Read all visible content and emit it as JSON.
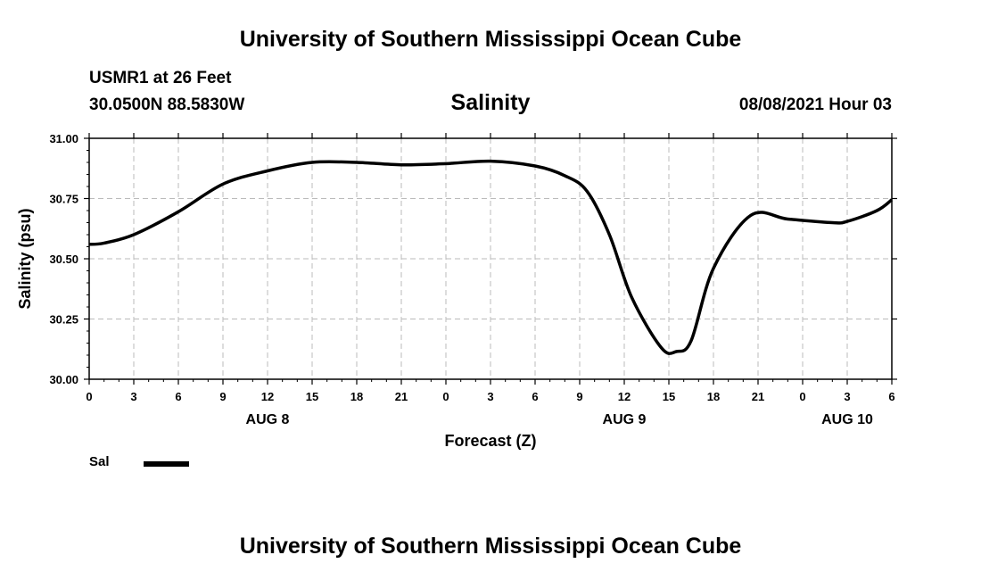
{
  "header": {
    "top_title": "University of Southern Mississippi Ocean Cube",
    "station": "USMR1 at 26 Feet",
    "coords": "30.0500N  88.5830W",
    "chart_title": "Salinity",
    "datetime": "08/08/2021 Hour 03"
  },
  "footer": {
    "bottom_title": "University of Southern Mississippi Ocean Cube"
  },
  "legend": {
    "label": "Sal"
  },
  "colors": {
    "line": "#000000",
    "grid": "#bbbbbb"
  },
  "chart_data": {
    "type": "line",
    "title": "Salinity",
    "xlabel": "Forecast (Z)",
    "ylabel": "Salinity (psu)",
    "ylim": [
      30.0,
      31.0
    ],
    "xlim": [
      0,
      54
    ],
    "grid": true,
    "yticks": [
      "30.00",
      "30.25",
      "30.50",
      "30.75",
      "31.00"
    ],
    "ytick_values": [
      30.0,
      30.25,
      30.5,
      30.75,
      31.0
    ],
    "xticks": [
      "0",
      "3",
      "6",
      "9",
      "12",
      "15",
      "18",
      "21",
      "0",
      "3",
      "6",
      "9",
      "12",
      "15",
      "18",
      "21",
      "0",
      "3",
      "6"
    ],
    "date_labels": [
      {
        "label": "AUG 8",
        "hour": 12
      },
      {
        "label": "AUG 9",
        "hour": 36
      },
      {
        "label": "AUG 10",
        "hour": 51
      }
    ],
    "legend_position": "bottom-left",
    "series": [
      {
        "name": "Sal",
        "x": [
          0,
          1,
          3,
          6,
          9,
          12,
          15,
          18,
          21,
          24,
          27,
          30,
          32,
          33.5,
          35,
          36.5,
          38.5,
          39.5,
          40.5,
          42,
          44.5,
          47,
          50,
          51,
          53,
          54
        ],
        "y": [
          30.56,
          30.565,
          30.6,
          30.695,
          30.81,
          30.865,
          30.9,
          30.9,
          30.89,
          30.895,
          30.905,
          30.885,
          30.845,
          30.78,
          30.6,
          30.34,
          30.13,
          30.115,
          30.16,
          30.46,
          30.68,
          30.665,
          30.65,
          30.655,
          30.7,
          30.745
        ]
      }
    ]
  }
}
